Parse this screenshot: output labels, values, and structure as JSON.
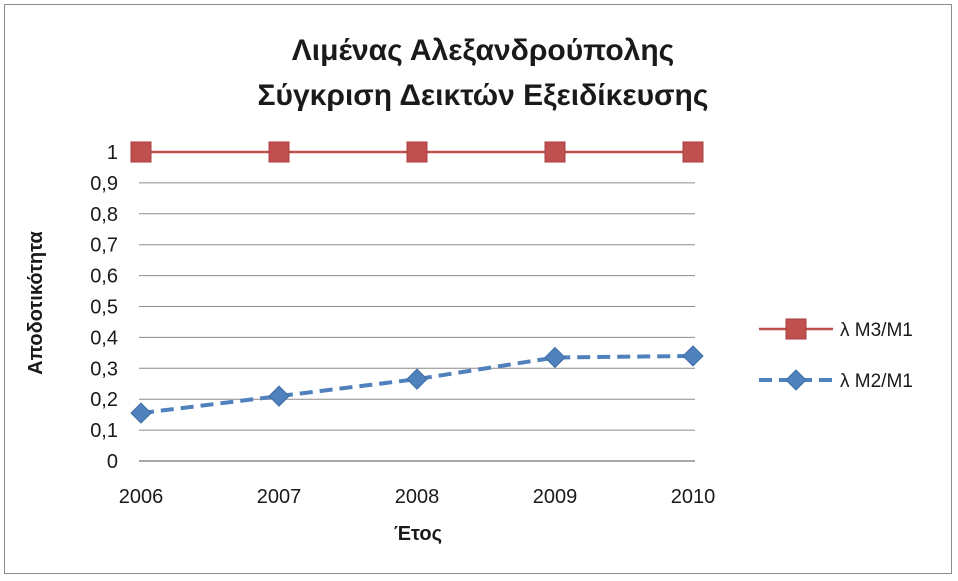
{
  "chart_data": {
    "type": "line",
    "title": [
      "Λιμένας Αλεξανδρούπολης",
      "Σύγκριση Δεικτών Εξειδίκευσης"
    ],
    "xlabel": "Έτος",
    "ylabel": "Αποδοτικότητα",
    "categories": [
      "2006",
      "2007",
      "2008",
      "2009",
      "2010"
    ],
    "ylim": [
      0,
      1
    ],
    "yticks": [
      "0",
      "0,1",
      "0,2",
      "0,3",
      "0,4",
      "0,5",
      "0,6",
      "0,7",
      "0,8",
      "0,9",
      "1"
    ],
    "grid": true,
    "legend_position": "right",
    "series": [
      {
        "name": "λ M3/M1",
        "values": [
          1,
          1,
          1,
          1,
          1
        ],
        "color": "#c0504d",
        "marker": "square",
        "line": "solid"
      },
      {
        "name": "λ M2/M1",
        "values": [
          0.155,
          0.21,
          0.265,
          0.335,
          0.34
        ],
        "color": "#4f81bd",
        "marker": "diamond",
        "line": "dashed"
      }
    ]
  }
}
